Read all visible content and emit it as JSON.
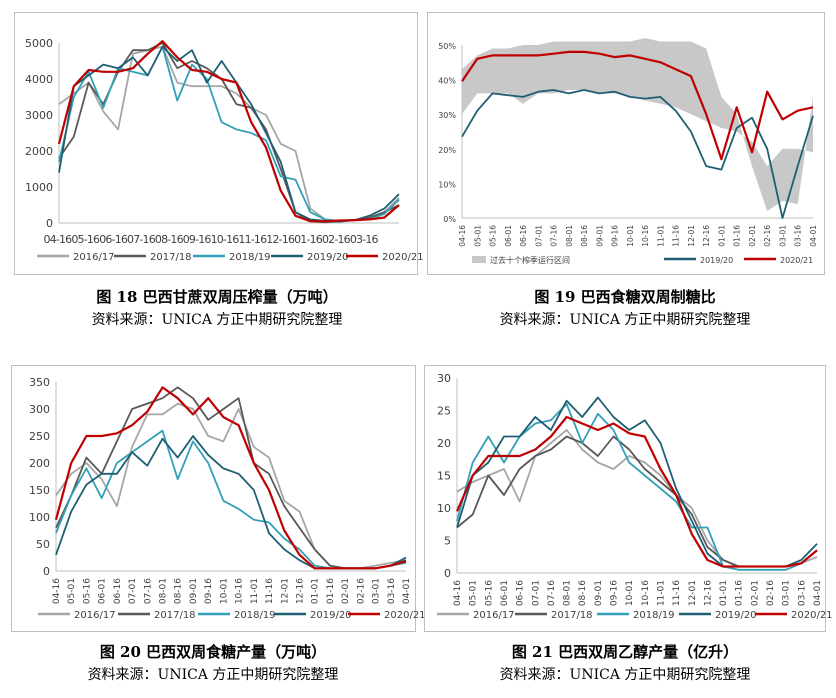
{
  "categories_ab": [
    "04-16",
    "05-16",
    "06-16",
    "07-16",
    "08-16",
    "09-16",
    "10-16",
    "11-16",
    "12-16",
    "01-16",
    "02-16",
    "03-16"
  ],
  "categories_cd": [
    "04-16",
    "05-01",
    "05-16",
    "06-01",
    "06-16",
    "07-01",
    "07-16",
    "08-01",
    "08-16",
    "09-01",
    "09-16",
    "10-01",
    "10-16",
    "11-01",
    "11-16",
    "12-01",
    "12-16",
    "01-01",
    "01-16",
    "02-01",
    "02-16",
    "03-01",
    "03-16",
    "04-01"
  ],
  "colors": {
    "2016/17": "#a6a6a6",
    "2017/18": "#595959",
    "2018/19": "#31a0b8",
    "2019/20": "#1f5f73",
    "2020/21": "#c00000",
    "band": "#c8c8c8"
  },
  "chart_data": [
    {
      "id": "a",
      "type": "line",
      "title": "图 18 巴西甘蔗双周压榨量（万吨）",
      "source": "资料来源：UNICA  方正中期研究院整理",
      "ylim": [
        0,
        5000
      ],
      "yticks": [
        0,
        1000,
        2000,
        3000,
        4000,
        5000
      ],
      "x_tick_text": "04-1605-1606-1607-1608-1609-1610-1611-1612-1601-1602-1603-16",
      "series": [
        {
          "name": "2016/17",
          "values": [
            3300,
            3600,
            3900,
            3100,
            2600,
            4700,
            4800,
            4900,
            3900,
            3800,
            3800,
            3800,
            3600,
            3200,
            3000,
            2200,
            2000,
            400,
            100,
            50,
            80,
            120,
            300,
            700
          ]
        },
        {
          "name": "2017/18",
          "values": [
            1800,
            2400,
            3900,
            3300,
            4200,
            4800,
            4800,
            5000,
            4300,
            4500,
            4300,
            4000,
            3300,
            3200,
            2600,
            1500,
            300,
            50,
            20,
            50,
            80,
            150,
            300,
            500
          ]
        },
        {
          "name": "2018/19",
          "values": [
            1700,
            3500,
            4200,
            3200,
            4300,
            4200,
            4100,
            4900,
            3400,
            4400,
            4000,
            2800,
            2600,
            2500,
            2300,
            1300,
            1200,
            300,
            100,
            50,
            80,
            100,
            250,
            650
          ]
        },
        {
          "name": "2019/20",
          "values": [
            1400,
            3800,
            4100,
            4400,
            4300,
            4600,
            4100,
            4900,
            4500,
            4800,
            3900,
            4500,
            3900,
            3300,
            2500,
            1700,
            300,
            100,
            60,
            40,
            80,
            200,
            400,
            800
          ]
        },
        {
          "name": "2020/21",
          "values": [
            2200,
            3800,
            4250,
            4200,
            4200,
            4300,
            4700,
            5050,
            4600,
            4250,
            4200,
            4000,
            3900,
            2800,
            2100,
            900,
            200,
            50,
            50,
            70,
            80,
            100,
            150,
            500
          ]
        }
      ]
    },
    {
      "id": "b",
      "type": "line",
      "title": "图 19 巴西食糖双周制糖比",
      "source": "资料来源：UNICA  方正中期研究院整理",
      "ylim": [
        0,
        50
      ],
      "yticks": [
        "0%",
        "10%",
        "20%",
        "30%",
        "40%",
        "50%"
      ],
      "band_name": "过去十个榨季运行区间",
      "band_lower": [
        30,
        36,
        36,
        36,
        33,
        36,
        36,
        37,
        37,
        36,
        36,
        35,
        34,
        33,
        32,
        30,
        28,
        26,
        25,
        22,
        15,
        20,
        20,
        19
      ],
      "band_upper": [
        43,
        47,
        49,
        49,
        50,
        50,
        51,
        51,
        51,
        51,
        51,
        51,
        52,
        51,
        51,
        51,
        49,
        35,
        30,
        15,
        2,
        5,
        4,
        35
      ],
      "series": [
        {
          "name": "2019/20",
          "values": [
            23.5,
            31,
            36,
            35.5,
            35,
            36.5,
            37,
            36,
            37,
            36,
            36.5,
            35,
            34.5,
            35,
            31,
            25,
            15,
            14,
            26,
            29,
            20,
            0,
            15,
            29.5
          ]
        },
        {
          "name": "2020/21",
          "values": [
            39.5,
            46,
            47,
            47,
            47,
            47,
            47.5,
            48,
            48,
            47.5,
            46.5,
            47,
            46,
            45,
            43,
            41,
            30,
            17,
            32,
            19,
            36.5,
            28.5,
            31,
            32
          ]
        }
      ]
    },
    {
      "id": "c",
      "type": "line",
      "title": "图 20 巴西双周食糖产量（万吨）",
      "source": "资料来源：UNICA  方正中期研究院整理",
      "ylim": [
        0,
        350
      ],
      "yticks": [
        0,
        50,
        100,
        150,
        200,
        250,
        300,
        350
      ],
      "series": [
        {
          "name": "2016/17",
          "values": [
            140,
            180,
            200,
            170,
            120,
            230,
            290,
            290,
            310,
            300,
            250,
            240,
            300,
            230,
            210,
            130,
            110,
            40,
            10,
            5,
            5,
            10,
            15,
            20
          ]
        },
        {
          "name": "2017/18",
          "values": [
            80,
            140,
            210,
            180,
            240,
            300,
            310,
            320,
            340,
            320,
            280,
            300,
            320,
            200,
            180,
            120,
            80,
            40,
            10,
            5,
            5,
            5,
            10,
            20
          ]
        },
        {
          "name": "2018/19",
          "values": [
            70,
            140,
            190,
            135,
            200,
            220,
            240,
            260,
            170,
            240,
            200,
            130,
            115,
            95,
            90,
            60,
            40,
            10,
            5,
            5,
            5,
            5,
            10,
            15
          ]
        },
        {
          "name": "2019/20",
          "values": [
            30,
            110,
            160,
            180,
            180,
            220,
            195,
            245,
            210,
            250,
            215,
            190,
            180,
            150,
            70,
            40,
            20,
            5,
            5,
            5,
            5,
            5,
            10,
            25
          ]
        },
        {
          "name": "2020/21",
          "values": [
            95,
            200,
            250,
            250,
            255,
            270,
            295,
            340,
            320,
            290,
            320,
            285,
            270,
            200,
            150,
            75,
            30,
            5,
            5,
            5,
            5,
            5,
            10,
            18
          ]
        }
      ]
    },
    {
      "id": "d",
      "type": "line",
      "title": "图 21 巴西双周乙醇产量（亿升）",
      "source": "资料来源：UNICA  方正中期研究院整理",
      "ylim": [
        0,
        30
      ],
      "yticks": [
        0,
        5,
        10,
        15,
        20,
        25,
        30
      ],
      "series": [
        {
          "name": "2016/17",
          "values": [
            12.5,
            14,
            15,
            16,
            11,
            18,
            20,
            22,
            19,
            17,
            16,
            18,
            17,
            15,
            12,
            10,
            5,
            2,
            1,
            1,
            1,
            1,
            1.5,
            2.5
          ]
        },
        {
          "name": "2017/18",
          "values": [
            7,
            9,
            15,
            12,
            16,
            18,
            19,
            21,
            20,
            18,
            21,
            19,
            16,
            14,
            12,
            9,
            4,
            2,
            1,
            1,
            1,
            1,
            1.5,
            3.5
          ]
        },
        {
          "name": "2018/19",
          "values": [
            8,
            17,
            21,
            17,
            21,
            23,
            23.5,
            26,
            20,
            24.5,
            22,
            17,
            15,
            13,
            11,
            7,
            7,
            1,
            0.5,
            0.5,
            0.5,
            0.5,
            1.5,
            3.5
          ]
        },
        {
          "name": "2019/20",
          "values": [
            7,
            15,
            17,
            21,
            21,
            24,
            22,
            26.5,
            24,
            27,
            24,
            22,
            23.5,
            20,
            13,
            8,
            3,
            1,
            1,
            1,
            1,
            1,
            2,
            4.5
          ]
        },
        {
          "name": "2020/21",
          "values": [
            9.5,
            15,
            18,
            18,
            18,
            19,
            21,
            24,
            23,
            22,
            23,
            21.5,
            21,
            16,
            12,
            6,
            2,
            1,
            1,
            1,
            1,
            1,
            1.5,
            3.5
          ]
        }
      ]
    }
  ]
}
